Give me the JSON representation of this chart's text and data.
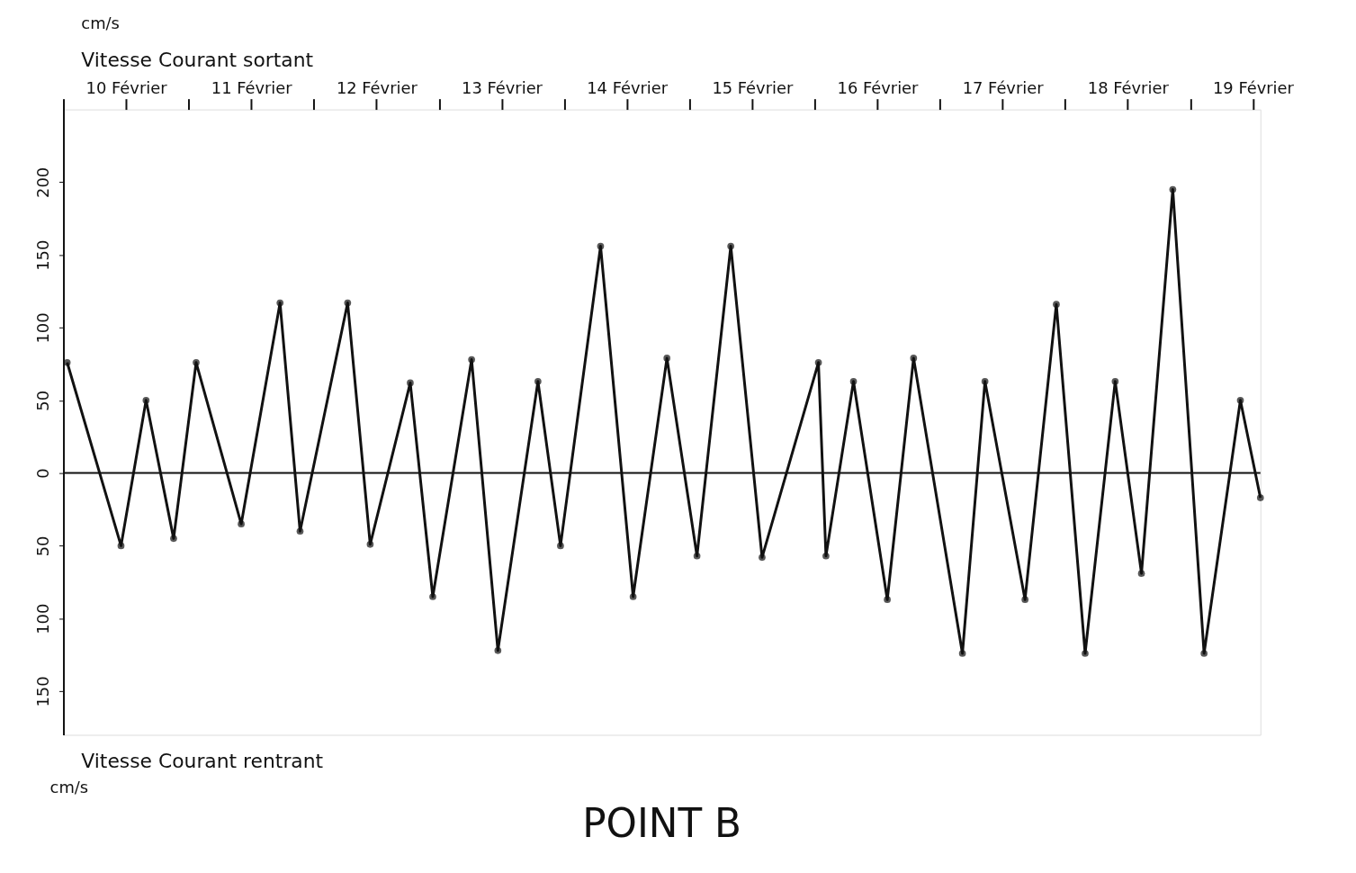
{
  "chart_data": {
    "type": "line",
    "title": "POINT B",
    "x": [
      10.03,
      10.46,
      10.66,
      10.88,
      11.06,
      11.42,
      11.73,
      11.89,
      12.27,
      12.45,
      12.77,
      12.95,
      13.26,
      13.47,
      13.79,
      13.97,
      14.29,
      14.55,
      14.82,
      15.06,
      15.33,
      15.58,
      16.03,
      16.09,
      16.31,
      16.58,
      16.79,
      17.18,
      17.36,
      17.68,
      17.93,
      18.16,
      18.4,
      18.61,
      18.86,
      19.11,
      19.4,
      19.56
    ],
    "series": [
      {
        "color": "#111111",
        "values": [
          76,
          -50,
          50,
          -45,
          76,
          -35,
          117,
          -40,
          117,
          -49,
          62,
          -85,
          78,
          -122,
          63,
          -50,
          156,
          -85,
          79,
          -57,
          156,
          -58,
          76,
          -57,
          63,
          -87,
          79,
          -124,
          63,
          -87,
          116,
          -124,
          63,
          -69,
          195,
          -124,
          50,
          -17
        ]
      }
    ],
    "xlim": [
      10,
      19.56
    ],
    "xticks": [
      {
        "value": 10,
        "label": null
      },
      {
        "value": 10.5,
        "label": "10 Février"
      },
      {
        "value": 11,
        "label": null
      },
      {
        "value": 11.5,
        "label": "11 Février"
      },
      {
        "value": 12,
        "label": null
      },
      {
        "value": 12.5,
        "label": "12 Février"
      },
      {
        "value": 13,
        "label": null
      },
      {
        "value": 13.5,
        "label": "13 Février"
      },
      {
        "value": 14,
        "label": null
      },
      {
        "value": 14.5,
        "label": "14 Février"
      },
      {
        "value": 15,
        "label": null
      },
      {
        "value": 15.5,
        "label": "15 Février"
      },
      {
        "value": 16,
        "label": null
      },
      {
        "value": 16.5,
        "label": "16 Février"
      },
      {
        "value": 17,
        "label": null
      },
      {
        "value": 17.5,
        "label": "17 Février"
      },
      {
        "value": 18,
        "label": null
      },
      {
        "value": 18.5,
        "label": "18 Février"
      },
      {
        "value": 19,
        "label": null
      },
      {
        "value": 19.5,
        "label": "19 Février"
      }
    ],
    "ylim": [
      -180,
      250
    ],
    "yticks": [
      200,
      150,
      100,
      50,
      0,
      {
        "value": -50,
        "label": "50"
      },
      {
        "value": -100,
        "label": "100"
      },
      {
        "value": -150,
        "label": "150"
      }
    ],
    "ref_lines": [
      {
        "axis": "y",
        "value": 0,
        "label": null
      }
    ],
    "annotations": [
      "cm/s",
      "Vitesse Courant sortant",
      "Vitesse Courant rentrant",
      "cm/s"
    ],
    "grid": false,
    "marker": "circle",
    "line_style": "solid"
  }
}
